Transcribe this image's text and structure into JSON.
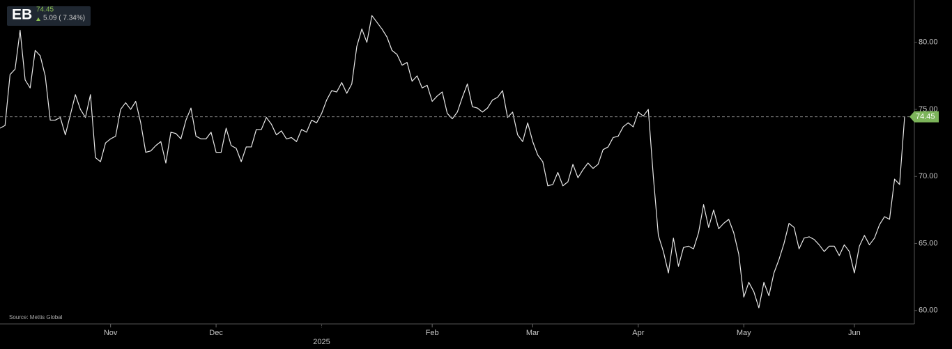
{
  "chart_data": {
    "type": "line",
    "ticker": "EB",
    "change": "5.09 ( 7.34%)",
    "source": "Source: Mettis Global",
    "categories": [
      null,
      null,
      null,
      null,
      null,
      null,
      null,
      null,
      null,
      null,
      null,
      null,
      null,
      null,
      null,
      null,
      null,
      null,
      null,
      null,
      null,
      null,
      "Nov",
      null,
      null,
      null,
      null,
      null,
      null,
      null,
      null,
      null,
      null,
      null,
      null,
      null,
      null,
      null,
      null,
      null,
      null,
      null,
      null,
      "Dec",
      null,
      null,
      null,
      null,
      null,
      null,
      null,
      null,
      null,
      null,
      null,
      null,
      null,
      null,
      null,
      null,
      null,
      null,
      null,
      null,
      "2025",
      null,
      null,
      null,
      null,
      null,
      null,
      null,
      null,
      null,
      null,
      null,
      null,
      null,
      null,
      null,
      null,
      null,
      null,
      null,
      null,
      null,
      "Feb",
      null,
      null,
      null,
      null,
      null,
      null,
      null,
      null,
      null,
      null,
      null,
      null,
      null,
      null,
      null,
      null,
      null,
      null,
      null,
      "Mar",
      null,
      null,
      null,
      null,
      null,
      null,
      null,
      null,
      null,
      null,
      null,
      null,
      null,
      null,
      null,
      null,
      null,
      null,
      null,
      null,
      "Apr",
      null,
      null,
      null,
      null,
      null,
      null,
      null,
      null,
      null,
      null,
      null,
      null,
      null,
      null,
      null,
      null,
      null,
      null,
      null,
      null,
      "May",
      null,
      null,
      null,
      null,
      null,
      null,
      null,
      null,
      null,
      null,
      null,
      null,
      null,
      null,
      null,
      null,
      null,
      null,
      null,
      null,
      null,
      "Jun",
      null,
      null,
      null,
      null,
      null,
      null,
      null,
      null,
      null,
      null
    ],
    "series": [
      {
        "name": "EB",
        "color": "#e8e8e8",
        "values": [
          73.6,
          73.8,
          77.6,
          78.0,
          80.9,
          77.2,
          76.6,
          79.4,
          79.0,
          77.5,
          74.2,
          74.2,
          74.4,
          73.1,
          74.6,
          76.1,
          75.0,
          74.4,
          76.1,
          71.4,
          71.1,
          72.5,
          72.8,
          73.0,
          75.0,
          75.5,
          75.0,
          75.6,
          74.0,
          71.8,
          71.9,
          72.3,
          72.6,
          71.0,
          73.3,
          73.2,
          72.8,
          74.2,
          75.1,
          73.0,
          72.8,
          72.8,
          73.3,
          71.8,
          71.8,
          73.6,
          72.3,
          72.1,
          71.1,
          72.2,
          72.2,
          73.5,
          73.5,
          74.4,
          73.9,
          73.1,
          73.4,
          72.8,
          72.9,
          72.6,
          73.5,
          73.3,
          74.2,
          74.0,
          74.7,
          75.7,
          76.4,
          76.3,
          77.0,
          76.2,
          76.9,
          79.7,
          81.0,
          80.0,
          82.0,
          81.5,
          81.0,
          80.4,
          79.4,
          79.1,
          78.3,
          78.5,
          77.1,
          77.5,
          76.6,
          76.8,
          75.6,
          76.0,
          76.3,
          74.7,
          74.3,
          74.8,
          75.9,
          76.9,
          75.2,
          75.1,
          74.8,
          75.1,
          75.7,
          75.9,
          76.4,
          74.4,
          74.8,
          73.1,
          72.6,
          74.0,
          72.6,
          71.6,
          71.1,
          69.3,
          69.4,
          70.3,
          69.3,
          69.6,
          70.9,
          69.9,
          70.5,
          71.0,
          70.6,
          70.9,
          72.0,
          72.2,
          72.9,
          73.0,
          73.7,
          74.0,
          73.7,
          74.8,
          74.5,
          75.0,
          70.0,
          65.6,
          64.4,
          62.8,
          65.4,
          63.3,
          64.7,
          64.8,
          64.6,
          65.8,
          67.9,
          66.2,
          67.5,
          66.1,
          66.5,
          66.8,
          65.8,
          64.2,
          61.0,
          62.1,
          61.4,
          60.2,
          62.1,
          61.1,
          62.8,
          63.8,
          65.0,
          66.5,
          66.2,
          64.6,
          65.4,
          65.5,
          65.3,
          64.9,
          64.4,
          64.8,
          64.8,
          64.1,
          64.9,
          64.4,
          62.8,
          64.8,
          65.6,
          64.9,
          65.4,
          66.4,
          67.0,
          66.8,
          69.8,
          69.4,
          74.45
        ]
      }
    ],
    "ylim": [
      59.0,
      83.16
    ],
    "yticks": [
      {
        "value": 60,
        "label": "60.00"
      },
      {
        "value": 65,
        "label": "65.00"
      },
      {
        "value": 70,
        "label": "70.00"
      },
      {
        "value": 75,
        "label": "75.00"
      },
      {
        "value": 80,
        "label": "80.00"
      }
    ],
    "grid": false,
    "last_tag_color": "#7cb45a"
  }
}
